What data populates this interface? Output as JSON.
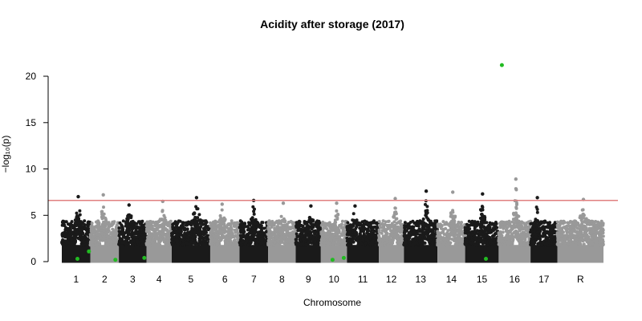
{
  "chart_data": {
    "type": "scatter",
    "title": "Acidity after storage (2017)",
    "xlabel": "Chromosome",
    "ylabel": "−log₁₀(p)",
    "ylim": [
      0,
      22
    ],
    "yticks": [
      0,
      5,
      10,
      15,
      20
    ],
    "threshold": 6.6,
    "colors": {
      "dark": "#1a1a1a",
      "light": "#999999",
      "highlight": "#22bb22",
      "threshold": "#e08080"
    },
    "chromosomes": [
      {
        "label": "1",
        "length": 34,
        "peak": 7.0,
        "shade": "dark"
      },
      {
        "label": "2",
        "length": 34,
        "peak": 7.2,
        "shade": "light"
      },
      {
        "label": "3",
        "length": 33,
        "peak": 6.1,
        "shade": "dark"
      },
      {
        "label": "4",
        "length": 30,
        "peak": 6.5,
        "shade": "light"
      },
      {
        "label": "5",
        "length": 46,
        "peak": 6.9,
        "shade": "dark"
      },
      {
        "label": "6",
        "length": 35,
        "peak": 6.2,
        "shade": "light"
      },
      {
        "label": "7",
        "length": 34,
        "peak": 6.6,
        "shade": "dark"
      },
      {
        "label": "8",
        "length": 33,
        "peak": 6.3,
        "shade": "light"
      },
      {
        "label": "9",
        "length": 30,
        "peak": 6.0,
        "shade": "dark"
      },
      {
        "label": "10",
        "length": 31,
        "peak": 6.3,
        "shade": "light"
      },
      {
        "label": "11",
        "length": 38,
        "peak": 6.0,
        "shade": "dark"
      },
      {
        "label": "12",
        "length": 30,
        "peak": 6.8,
        "shade": "light"
      },
      {
        "label": "13",
        "length": 40,
        "peak": 7.6,
        "shade": "dark"
      },
      {
        "label": "14",
        "length": 33,
        "peak": 7.5,
        "shade": "light"
      },
      {
        "label": "15",
        "length": 40,
        "peak": 7.3,
        "shade": "dark"
      },
      {
        "label": "16",
        "length": 38,
        "peak": 8.9,
        "shade": "light"
      },
      {
        "label": "17",
        "length": 32,
        "peak": 6.9,
        "shade": "dark"
      },
      {
        "label": "R",
        "length": 55,
        "peak": 6.7,
        "shade": "light"
      }
    ],
    "highlighted_points": [
      {
        "chromosome": "1",
        "position": 0.55,
        "value": 0.3
      },
      {
        "chromosome": "1",
        "position": 0.95,
        "value": 1.1
      },
      {
        "chromosome": "2",
        "position": 0.88,
        "value": 0.2
      },
      {
        "chromosome": "3",
        "position": 0.92,
        "value": 0.4
      },
      {
        "chromosome": "10",
        "position": 0.45,
        "value": 0.2
      },
      {
        "chromosome": "10",
        "position": 0.88,
        "value": 0.4
      },
      {
        "chromosome": "15",
        "position": 0.62,
        "value": 0.3
      },
      {
        "chromosome": "16",
        "position": 0.1,
        "value": 21.2
      }
    ]
  }
}
